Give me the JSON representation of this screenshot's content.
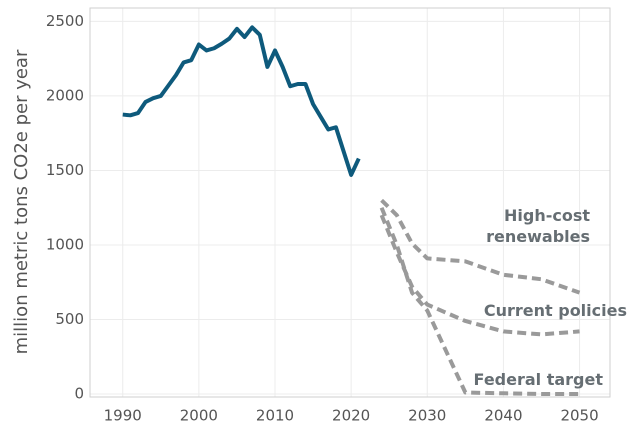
{
  "chart_data": {
    "type": "line",
    "ylabel": "million metric tons CO2e per year",
    "xlim": [
      1985.7,
      2054
    ],
    "ylim": [
      -20,
      2590
    ],
    "xticks": [
      1990,
      2000,
      2010,
      2020,
      2030,
      2040,
      2050
    ],
    "yticks": [
      0,
      500,
      1000,
      1500,
      2000,
      2500
    ],
    "grid": true,
    "series": [
      {
        "color": "#0e5a7c",
        "dashed": false,
        "x": [
          1990,
          1991,
          1992,
          1993,
          1994,
          1995,
          1996,
          1997,
          1998,
          1999,
          2000,
          2001,
          2002,
          2003,
          2004,
          2005,
          2006,
          2007,
          2008,
          2009,
          2010,
          2011,
          2012,
          2013,
          2014,
          2015,
          2016,
          2017,
          2018,
          2019,
          2020,
          2021
        ],
        "values": [
          1875,
          1870,
          1885,
          1960,
          1985,
          2000,
          2070,
          2140,
          2225,
          2240,
          2345,
          2305,
          2320,
          2350,
          2385,
          2450,
          2395,
          2460,
          2410,
          2195,
          2305,
          2195,
          2065,
          2080,
          2080,
          1945,
          1860,
          1775,
          1790,
          1630,
          1470,
          1580
        ]
      },
      {
        "name": "High-cost renewables",
        "color": "#9a9a9a",
        "dashed": true,
        "x": [
          2024,
          2026,
          2028,
          2030,
          2035,
          2040,
          2045,
          2050
        ],
        "values": [
          1300,
          1200,
          1010,
          910,
          890,
          800,
          770,
          680
        ]
      },
      {
        "name": "Current policies",
        "color": "#9a9a9a",
        "dashed": true,
        "x": [
          2024,
          2026,
          2028,
          2030,
          2035,
          2040,
          2045,
          2050
        ],
        "values": [
          1200,
          950,
          720,
          600,
          490,
          420,
          400,
          420
        ]
      },
      {
        "name": "Federal target",
        "color": "#9a9a9a",
        "dashed": true,
        "x": [
          2024,
          2026,
          2028,
          2030,
          2035,
          2040,
          2045,
          2050
        ],
        "values": [
          1250,
          1000,
          680,
          560,
          10,
          5,
          0,
          0
        ]
      }
    ]
  }
}
